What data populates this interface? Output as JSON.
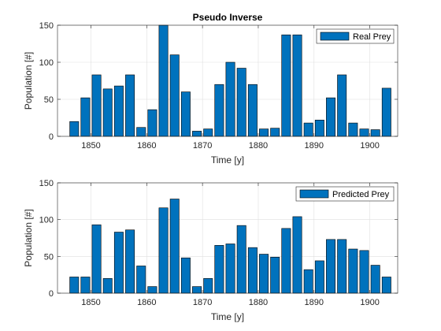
{
  "chart_data": [
    {
      "type": "bar",
      "title": "Pseudo Inverse",
      "xlabel": "Time [y]",
      "ylabel": "Population [#]",
      "xlim": [
        1844,
        1905
      ],
      "ylim": [
        0,
        150
      ],
      "xticks": [
        1850,
        1860,
        1870,
        1880,
        1890,
        1900
      ],
      "yticks": [
        0,
        50,
        100,
        150
      ],
      "grid": true,
      "legend_position": "top-right",
      "bar_color": "#0072BD",
      "x": [
        1847,
        1849,
        1851,
        1853,
        1855,
        1857,
        1859,
        1861,
        1863,
        1865,
        1867,
        1869,
        1871,
        1873,
        1875,
        1877,
        1879,
        1881,
        1883,
        1885,
        1887,
        1889,
        1891,
        1893,
        1895,
        1897,
        1899,
        1901,
        1903
      ],
      "series": [
        {
          "name": "Real Prey",
          "values": [
            20,
            52,
            83,
            64,
            68,
            83,
            12,
            36,
            150,
            110,
            60,
            7,
            10,
            70,
            100,
            92,
            70,
            10,
            11,
            137,
            137,
            18,
            22,
            52,
            83,
            18,
            10,
            9,
            65
          ]
        }
      ]
    },
    {
      "type": "bar",
      "title": "",
      "xlabel": "Time [y]",
      "ylabel": "Population [#]",
      "xlim": [
        1844,
        1905
      ],
      "ylim": [
        0,
        150
      ],
      "xticks": [
        1850,
        1860,
        1870,
        1880,
        1890,
        1900
      ],
      "yticks": [
        0,
        50,
        100,
        150
      ],
      "grid": true,
      "legend_position": "top-right",
      "bar_color": "#0072BD",
      "x": [
        1847,
        1849,
        1851,
        1853,
        1855,
        1857,
        1859,
        1861,
        1863,
        1865,
        1867,
        1869,
        1871,
        1873,
        1875,
        1877,
        1879,
        1881,
        1883,
        1885,
        1887,
        1889,
        1891,
        1893,
        1895,
        1897,
        1899,
        1901,
        1903
      ],
      "series": [
        {
          "name": "Predicted Prey",
          "values": [
            22,
            22,
            93,
            20,
            83,
            86,
            37,
            9,
            116,
            128,
            48,
            9,
            20,
            65,
            67,
            92,
            62,
            53,
            49,
            88,
            104,
            32,
            44,
            73,
            73,
            60,
            58,
            38,
            22
          ]
        }
      ]
    }
  ]
}
